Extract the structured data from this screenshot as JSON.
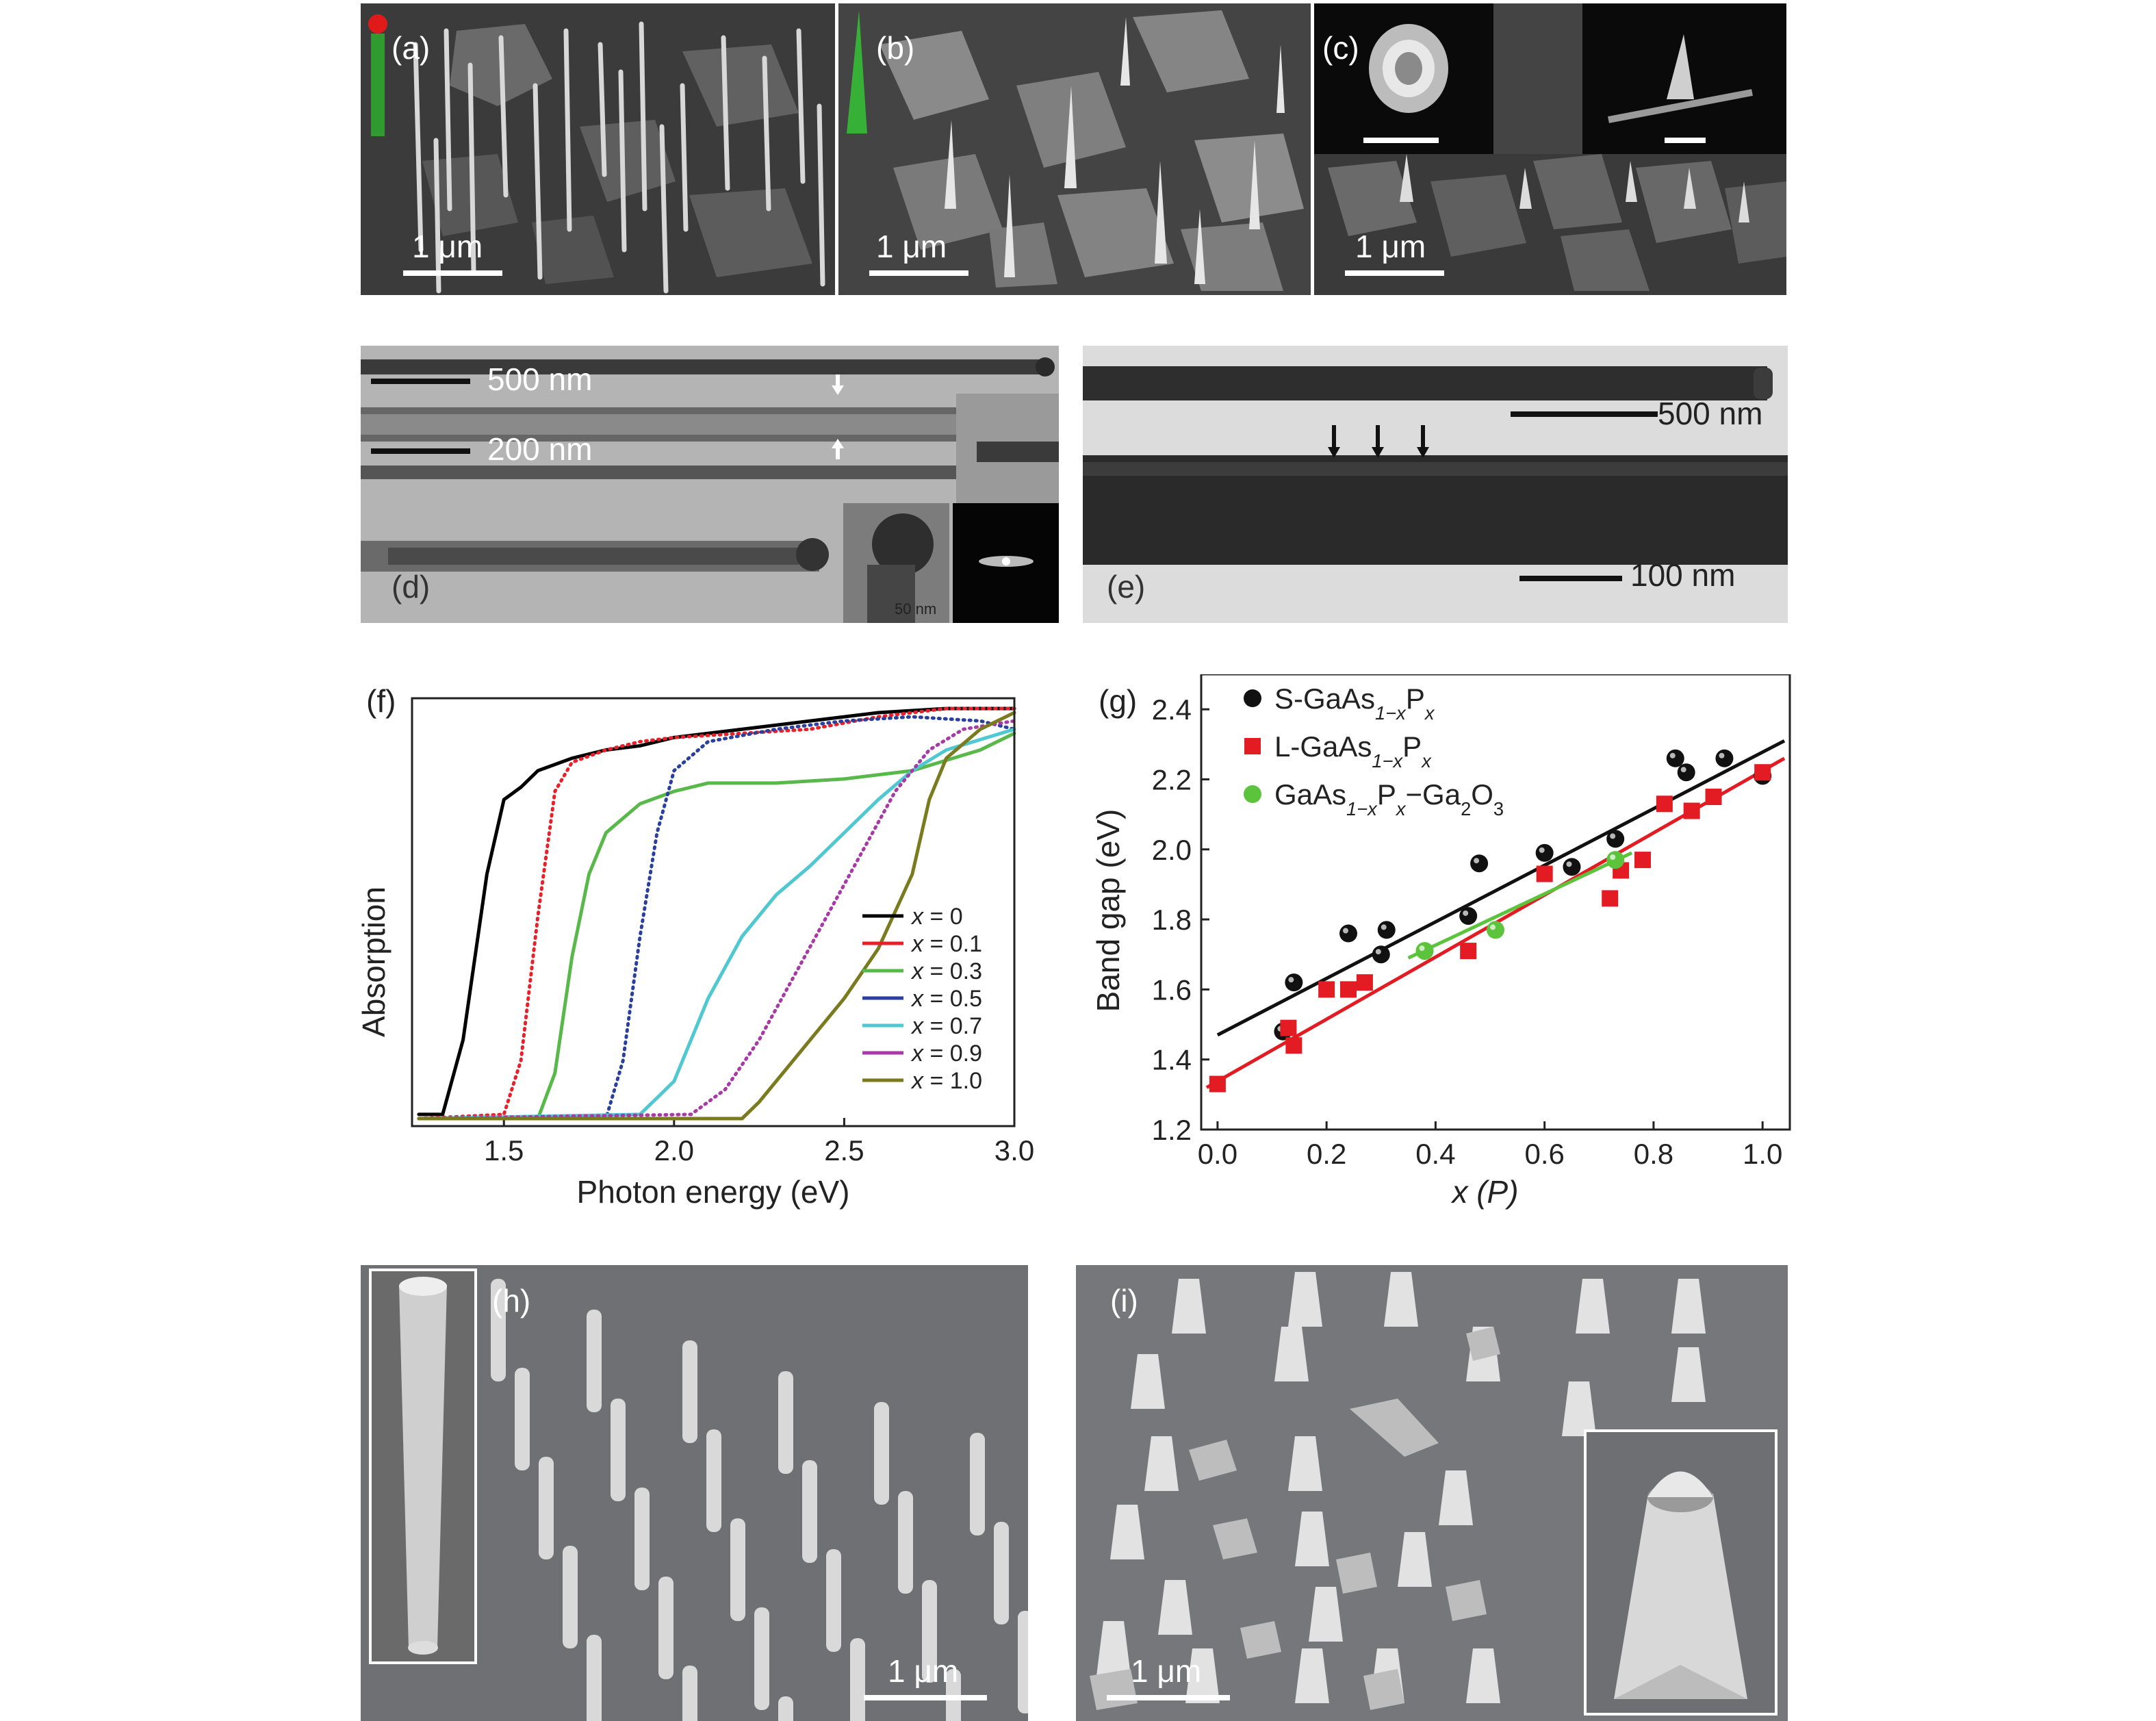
{
  "panels": {
    "a": {
      "label": "(a)",
      "scale": "1 μm"
    },
    "b": {
      "label": "(b)",
      "scale": "1 μm"
    },
    "c": {
      "label": "(c)",
      "scale": "1 μm"
    },
    "d": {
      "label": "(d)",
      "scale_top": "500 nm",
      "scale_mid": "200 nm",
      "inset_scale": "50 nm"
    },
    "e": {
      "label": "(e)",
      "scale_top": "500 nm",
      "scale_bottom": "100 nm"
    },
    "h": {
      "label": "(h)",
      "scale": "1 μm"
    },
    "i": {
      "label": "(i)",
      "scale": "1 μm"
    }
  },
  "chart_data": [
    {
      "panel": "(f)",
      "type": "line",
      "xlabel": "Photon energy (eV)",
      "ylabel": "Absorption",
      "xlim": [
        1.23,
        3.0
      ],
      "ylim": [
        0,
        1
      ],
      "xticks": [
        "1.5",
        "2.0",
        "2.5",
        "3.0"
      ],
      "legend_position": "bottom-right",
      "series": [
        {
          "name": "x = 0",
          "color": "#000000",
          "x": [
            1.25,
            1.32,
            1.38,
            1.45,
            1.5,
            1.55,
            1.6,
            1.7,
            1.8,
            1.9,
            2.0,
            2.2,
            2.4,
            2.6,
            2.8,
            3.0
          ],
          "y": [
            0.02,
            0.02,
            0.2,
            0.6,
            0.78,
            0.81,
            0.85,
            0.88,
            0.9,
            0.91,
            0.93,
            0.95,
            0.97,
            0.99,
            1.0,
            1.0
          ]
        },
        {
          "name": "x = 0.1",
          "color": "#e8202a",
          "x": [
            1.25,
            1.5,
            1.55,
            1.6,
            1.65,
            1.7,
            1.8,
            1.9,
            2.0,
            2.2,
            2.4,
            2.6,
            2.8,
            3.0
          ],
          "y": [
            0.01,
            0.02,
            0.15,
            0.5,
            0.8,
            0.87,
            0.9,
            0.92,
            0.93,
            0.94,
            0.95,
            0.98,
            1.0,
            1.0
          ]
        },
        {
          "name": "x = 0.3",
          "color": "#58b84a",
          "x": [
            1.25,
            1.6,
            1.65,
            1.7,
            1.75,
            1.8,
            1.9,
            2.0,
            2.1,
            2.3,
            2.5,
            2.7,
            2.9,
            3.0
          ],
          "y": [
            0.01,
            0.01,
            0.12,
            0.4,
            0.6,
            0.7,
            0.77,
            0.8,
            0.82,
            0.82,
            0.83,
            0.85,
            0.9,
            0.94
          ]
        },
        {
          "name": "x = 0.5",
          "color": "#2a3f9e",
          "x": [
            1.25,
            1.8,
            1.85,
            1.9,
            1.95,
            2.0,
            2.1,
            2.3,
            2.5,
            2.7,
            2.9,
            3.0
          ],
          "y": [
            0.01,
            0.01,
            0.15,
            0.45,
            0.7,
            0.85,
            0.92,
            0.95,
            0.97,
            0.98,
            0.97,
            0.95
          ]
        },
        {
          "name": "x = 0.7",
          "color": "#4fc8d2",
          "x": [
            1.25,
            1.9,
            2.0,
            2.1,
            2.2,
            2.3,
            2.4,
            2.5,
            2.6,
            2.7,
            2.8,
            3.0
          ],
          "y": [
            0.01,
            0.02,
            0.1,
            0.3,
            0.45,
            0.55,
            0.62,
            0.7,
            0.78,
            0.85,
            0.9,
            0.95
          ]
        },
        {
          "name": "x = 0.9",
          "color": "#a83aa8",
          "x": [
            1.25,
            2.05,
            2.15,
            2.25,
            2.35,
            2.45,
            2.55,
            2.65,
            2.75,
            2.85,
            3.0
          ],
          "y": [
            0.01,
            0.02,
            0.08,
            0.2,
            0.35,
            0.5,
            0.65,
            0.8,
            0.9,
            0.95,
            0.97
          ]
        },
        {
          "name": "x = 1.0",
          "color": "#7a7a1e",
          "x": [
            1.25,
            2.2,
            2.25,
            2.35,
            2.5,
            2.6,
            2.7,
            2.75,
            2.8,
            2.9,
            3.0
          ],
          "y": [
            0.01,
            0.01,
            0.05,
            0.15,
            0.3,
            0.42,
            0.6,
            0.78,
            0.88,
            0.95,
            0.99
          ]
        }
      ]
    },
    {
      "panel": "(g)",
      "type": "scatter",
      "xlabel": "x (P)",
      "ylabel": "Band gap (eV)",
      "xlim": [
        -0.03,
        1.05
      ],
      "ylim": [
        1.2,
        2.5
      ],
      "xticks": [
        "0.0",
        "0.2",
        "0.4",
        "0.6",
        "0.8",
        "1.0"
      ],
      "yticks": [
        "1.2",
        "1.4",
        "1.6",
        "1.8",
        "2.0",
        "2.2",
        "2.4"
      ],
      "legend_position": "top-left",
      "series": [
        {
          "name": "S-GaAs1−xPx",
          "color": "#111111",
          "marker": "sphere",
          "x": [
            0.12,
            0.14,
            0.24,
            0.3,
            0.31,
            0.46,
            0.48,
            0.6,
            0.65,
            0.73,
            0.84,
            0.86,
            0.93,
            1.0
          ],
          "y": [
            1.48,
            1.62,
            1.76,
            1.7,
            1.77,
            1.81,
            1.96,
            1.99,
            1.95,
            2.03,
            2.26,
            2.22,
            2.26,
            2.21
          ],
          "fit": [
            [
              0.0,
              1.47
            ],
            [
              1.04,
              2.31
            ]
          ]
        },
        {
          "name": "L-GaAs1−xPx",
          "color": "#e31b23",
          "marker": "square",
          "x": [
            0.0,
            0.13,
            0.14,
            0.2,
            0.24,
            0.27,
            0.46,
            0.6,
            0.72,
            0.74,
            0.78,
            0.82,
            0.87,
            0.91,
            1.0
          ],
          "y": [
            1.33,
            1.49,
            1.44,
            1.6,
            1.6,
            1.62,
            1.71,
            1.93,
            1.86,
            1.94,
            1.97,
            2.13,
            2.11,
            2.15,
            2.22
          ],
          "fit": [
            [
              -0.02,
              1.32
            ],
            [
              1.04,
              2.26
            ]
          ]
        },
        {
          "name": "GaAs1−xPx−Ga2O3",
          "color": "#5cc43c",
          "marker": "sphere",
          "x": [
            0.38,
            0.51,
            0.73
          ],
          "y": [
            1.71,
            1.77,
            1.97
          ],
          "fit": [
            [
              0.35,
              1.69
            ],
            [
              0.76,
              1.99
            ]
          ]
        }
      ]
    }
  ]
}
